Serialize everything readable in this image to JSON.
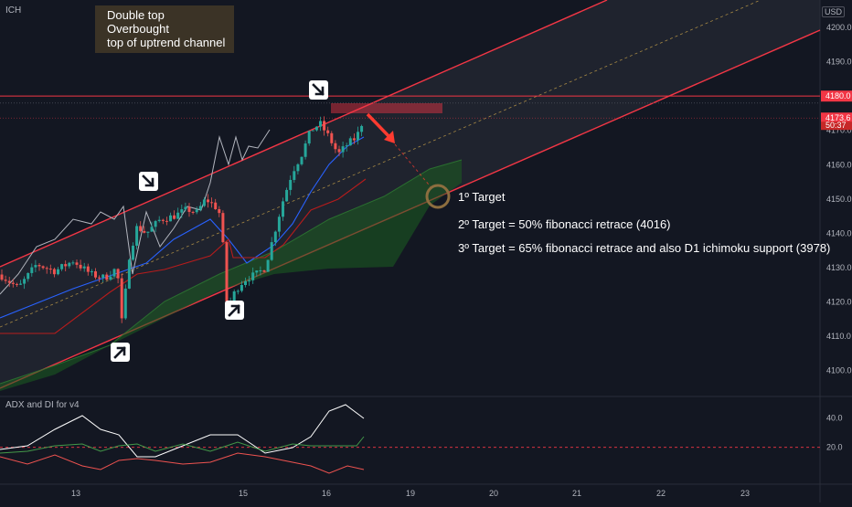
{
  "symbol_label": "ICH",
  "currency": "USD",
  "indicator_label": "ADX and DI for v4",
  "annotation": {
    "lines": [
      "Double top",
      "Overbought",
      "top of uptrend channel"
    ]
  },
  "targets": [
    "1º Target",
    "2º Target = 50% fibonacci retrace (4016)",
    "3º Target = 65% fibonacci retrace and also D1 ichimoku support (3978)"
  ],
  "colors": {
    "background": "#131722",
    "channel": "#f23645",
    "channel_fill": "#2a2e39",
    "up_candle": "#26a69a",
    "down_candle": "#ef5350",
    "kumo": "#1b5e20",
    "price_tag": "#f23645",
    "target_circle": "#8d6e3f",
    "arrow": "#ff3b30"
  },
  "icons": [
    "arrow-down-right-icon",
    "arrow-up-right-icon"
  ],
  "chart_data": {
    "type": "candlestick",
    "y_axis": {
      "ticks": [
        4100.0,
        4110.0,
        4120.0,
        4130.0,
        4140.0,
        4150.0,
        4160.0,
        4170.0,
        4190.0,
        4200.0
      ],
      "range": [
        4093,
        4208
      ]
    },
    "x_axis": {
      "ticks": [
        "13",
        "15",
        "16",
        "19",
        "20",
        "21",
        "22",
        "23"
      ]
    },
    "price_labels": [
      {
        "text": "4180.0",
        "value": 4180.0
      },
      {
        "text": "4173.6",
        "value": 4173.6
      },
      {
        "text": "50:37",
        "value": 4171.6
      }
    ],
    "horizontal_level": 4180.0,
    "indicator": {
      "name": "ADX and DI for v4",
      "y_ticks": [
        40.0,
        20.0
      ],
      "range": [
        0,
        52
      ],
      "level": 20.0
    }
  }
}
